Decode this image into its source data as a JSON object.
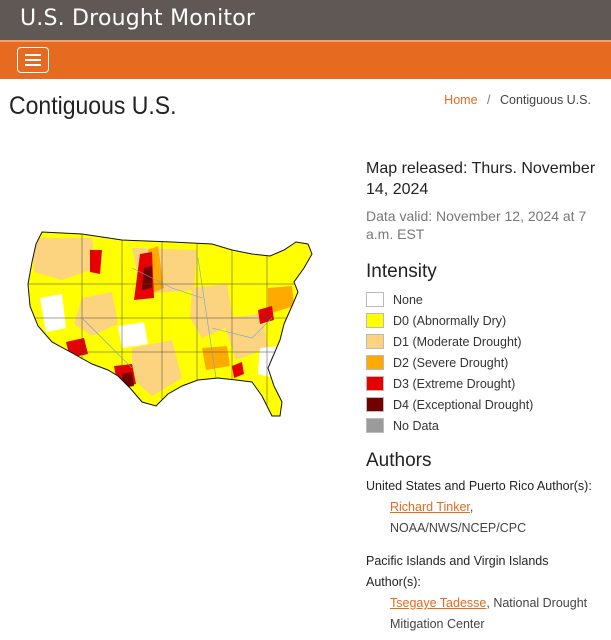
{
  "header": {
    "site_title": "U.S. Drought Monitor"
  },
  "nav": {
    "menu_icon": "hamburger-menu-icon"
  },
  "page": {
    "title": "Contiguous U.S."
  },
  "breadcrumb": {
    "home": "Home",
    "separator": "/",
    "current": "Contiguous U.S."
  },
  "map_info": {
    "released": "Map released: Thurs. November 14, 2024",
    "valid": "Data valid: November 12, 2024 at 7 a.m. EST"
  },
  "intensity": {
    "heading": "Intensity",
    "items": [
      {
        "label": "None",
        "color": "#ffffff"
      },
      {
        "label": "D0 (Abnormally Dry)",
        "color": "#ffff00"
      },
      {
        "label": "D1 (Moderate Drought)",
        "color": "#fcd37f"
      },
      {
        "label": "D2 (Severe Drought)",
        "color": "#ffaa00"
      },
      {
        "label": "D3 (Extreme Drought)",
        "color": "#e60000"
      },
      {
        "label": "D4 (Exceptional Drought)",
        "color": "#730000"
      },
      {
        "label": "No Data",
        "color": "#9b9b9b"
      }
    ]
  },
  "authors": {
    "heading": "Authors",
    "us_pr_label": "United States and Puerto Rico Author(s):",
    "us_pr_name": "Richard Tinker",
    "us_pr_sep": ",",
    "us_pr_org": "NOAA/NWS/NCEP/CPC",
    "pacific_label": "Pacific Islands and Virgin Islands Author(s):",
    "pacific_name": "Tsegaye Tadesse",
    "pacific_org": ", National Drought Mitigation Center"
  },
  "colors": {
    "header_bg": "#5f5854",
    "nav_bg": "#e66a1f",
    "link": "#e66a1f"
  }
}
